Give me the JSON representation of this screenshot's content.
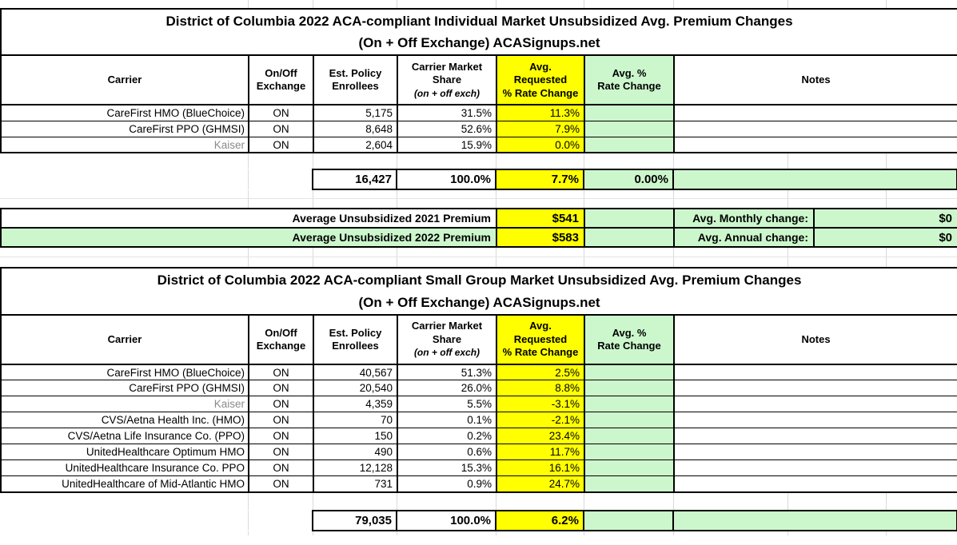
{
  "colors": {
    "highlight_yellow": "#ffff00",
    "highlight_green": "#ccf7cc",
    "gridline_gray": "#d9d9d9",
    "muted_carrier_text": "#8a8a8a"
  },
  "headers": {
    "carrier": "Carrier",
    "exchange_line1": "On/Off",
    "exchange_line2": "Exchange",
    "enrollees_line1": "Est. Policy",
    "enrollees_line2": "Enrollees",
    "share_line1": "Carrier Market",
    "share_line2": "Share",
    "share_sub": "(on + off exch)",
    "requested_line1": "Avg.",
    "requested_line2": "Requested",
    "requested_line3": "% Rate Change",
    "avg_change_line1": "Avg. %",
    "avg_change_line2": "Rate Change",
    "notes": "Notes"
  },
  "individual_market": {
    "title_line1": "District of Columbia 2022 ACA-compliant Individual Market Unsubsidized Avg. Premium Changes",
    "title_line2": "(On + Off Exchange) ACASignups.net",
    "rows": [
      {
        "carrier": "CareFirst HMO (BlueChoice)",
        "exchange": "ON",
        "enrollees": "5,175",
        "share": "31.5%",
        "requested": "11.3%",
        "avg_change": "",
        "notes": "",
        "gray": false
      },
      {
        "carrier": "CareFirst PPO (GHMSI)",
        "exchange": "ON",
        "enrollees": "8,648",
        "share": "52.6%",
        "requested": "7.9%",
        "avg_change": "",
        "notes": "",
        "gray": false
      },
      {
        "carrier": "Kaiser",
        "exchange": "ON",
        "enrollees": "2,604",
        "share": "15.9%",
        "requested": "0.0%",
        "avg_change": "",
        "notes": "",
        "gray": true
      }
    ],
    "total": {
      "enrollees": "16,427",
      "share": "100.0%",
      "requested": "7.7%",
      "avg_change": "0.00%",
      "notes": ""
    }
  },
  "premium_summary": {
    "rows": [
      {
        "label": "Average Unsubsidized 2021 Premium",
        "value": "$541",
        "spacer": "",
        "change_label": "Avg. Monthly change:",
        "change_value": "$0"
      },
      {
        "label": "Average Unsubsidized 2022 Premium",
        "value": "$583",
        "spacer": "",
        "change_label": "Avg. Annual change:",
        "change_value": "$0"
      }
    ]
  },
  "small_group_market": {
    "title_line1": "District of Columbia 2022 ACA-compliant Small Group Market Unsubsidized Avg. Premium Changes",
    "title_line2": "(On + Off Exchange) ACASignups.net",
    "rows": [
      {
        "carrier": "CareFirst HMO (BlueChoice)",
        "exchange": "ON",
        "enrollees": "40,567",
        "share": "51.3%",
        "requested": "2.5%",
        "avg_change": "",
        "notes": "",
        "gray": false
      },
      {
        "carrier": "CareFirst PPO (GHMSI)",
        "exchange": "ON",
        "enrollees": "20,540",
        "share": "26.0%",
        "requested": "8.8%",
        "avg_change": "",
        "notes": "",
        "gray": false
      },
      {
        "carrier": "Kaiser",
        "exchange": "ON",
        "enrollees": "4,359",
        "share": "5.5%",
        "requested": "-3.1%",
        "avg_change": "",
        "notes": "",
        "gray": true
      },
      {
        "carrier": "CVS/Aetna Health Inc. (HMO)",
        "exchange": "ON",
        "enrollees": "70",
        "share": "0.1%",
        "requested": "-2.1%",
        "avg_change": "",
        "notes": "",
        "gray": false
      },
      {
        "carrier": "CVS/Aetna Life Insurance Co. (PPO)",
        "exchange": "ON",
        "enrollees": "150",
        "share": "0.2%",
        "requested": "23.4%",
        "avg_change": "",
        "notes": "",
        "gray": false
      },
      {
        "carrier": "UnitedHealthcare Optimum HMO",
        "exchange": "ON",
        "enrollees": "490",
        "share": "0.6%",
        "requested": "11.7%",
        "avg_change": "",
        "notes": "",
        "gray": false
      },
      {
        "carrier": "UnitedHealthcare Insurance Co. PPO",
        "exchange": "ON",
        "enrollees": "12,128",
        "share": "15.3%",
        "requested": "16.1%",
        "avg_change": "",
        "notes": "",
        "gray": false
      },
      {
        "carrier": "UnitedHealthcare of Mid-Atlantic HMO",
        "exchange": "ON",
        "enrollees": "731",
        "share": "0.9%",
        "requested": "24.7%",
        "avg_change": "",
        "notes": "",
        "gray": false
      }
    ],
    "total": {
      "enrollees": "79,035",
      "share": "100.0%",
      "requested": "6.2%",
      "avg_change": "",
      "notes": ""
    }
  }
}
